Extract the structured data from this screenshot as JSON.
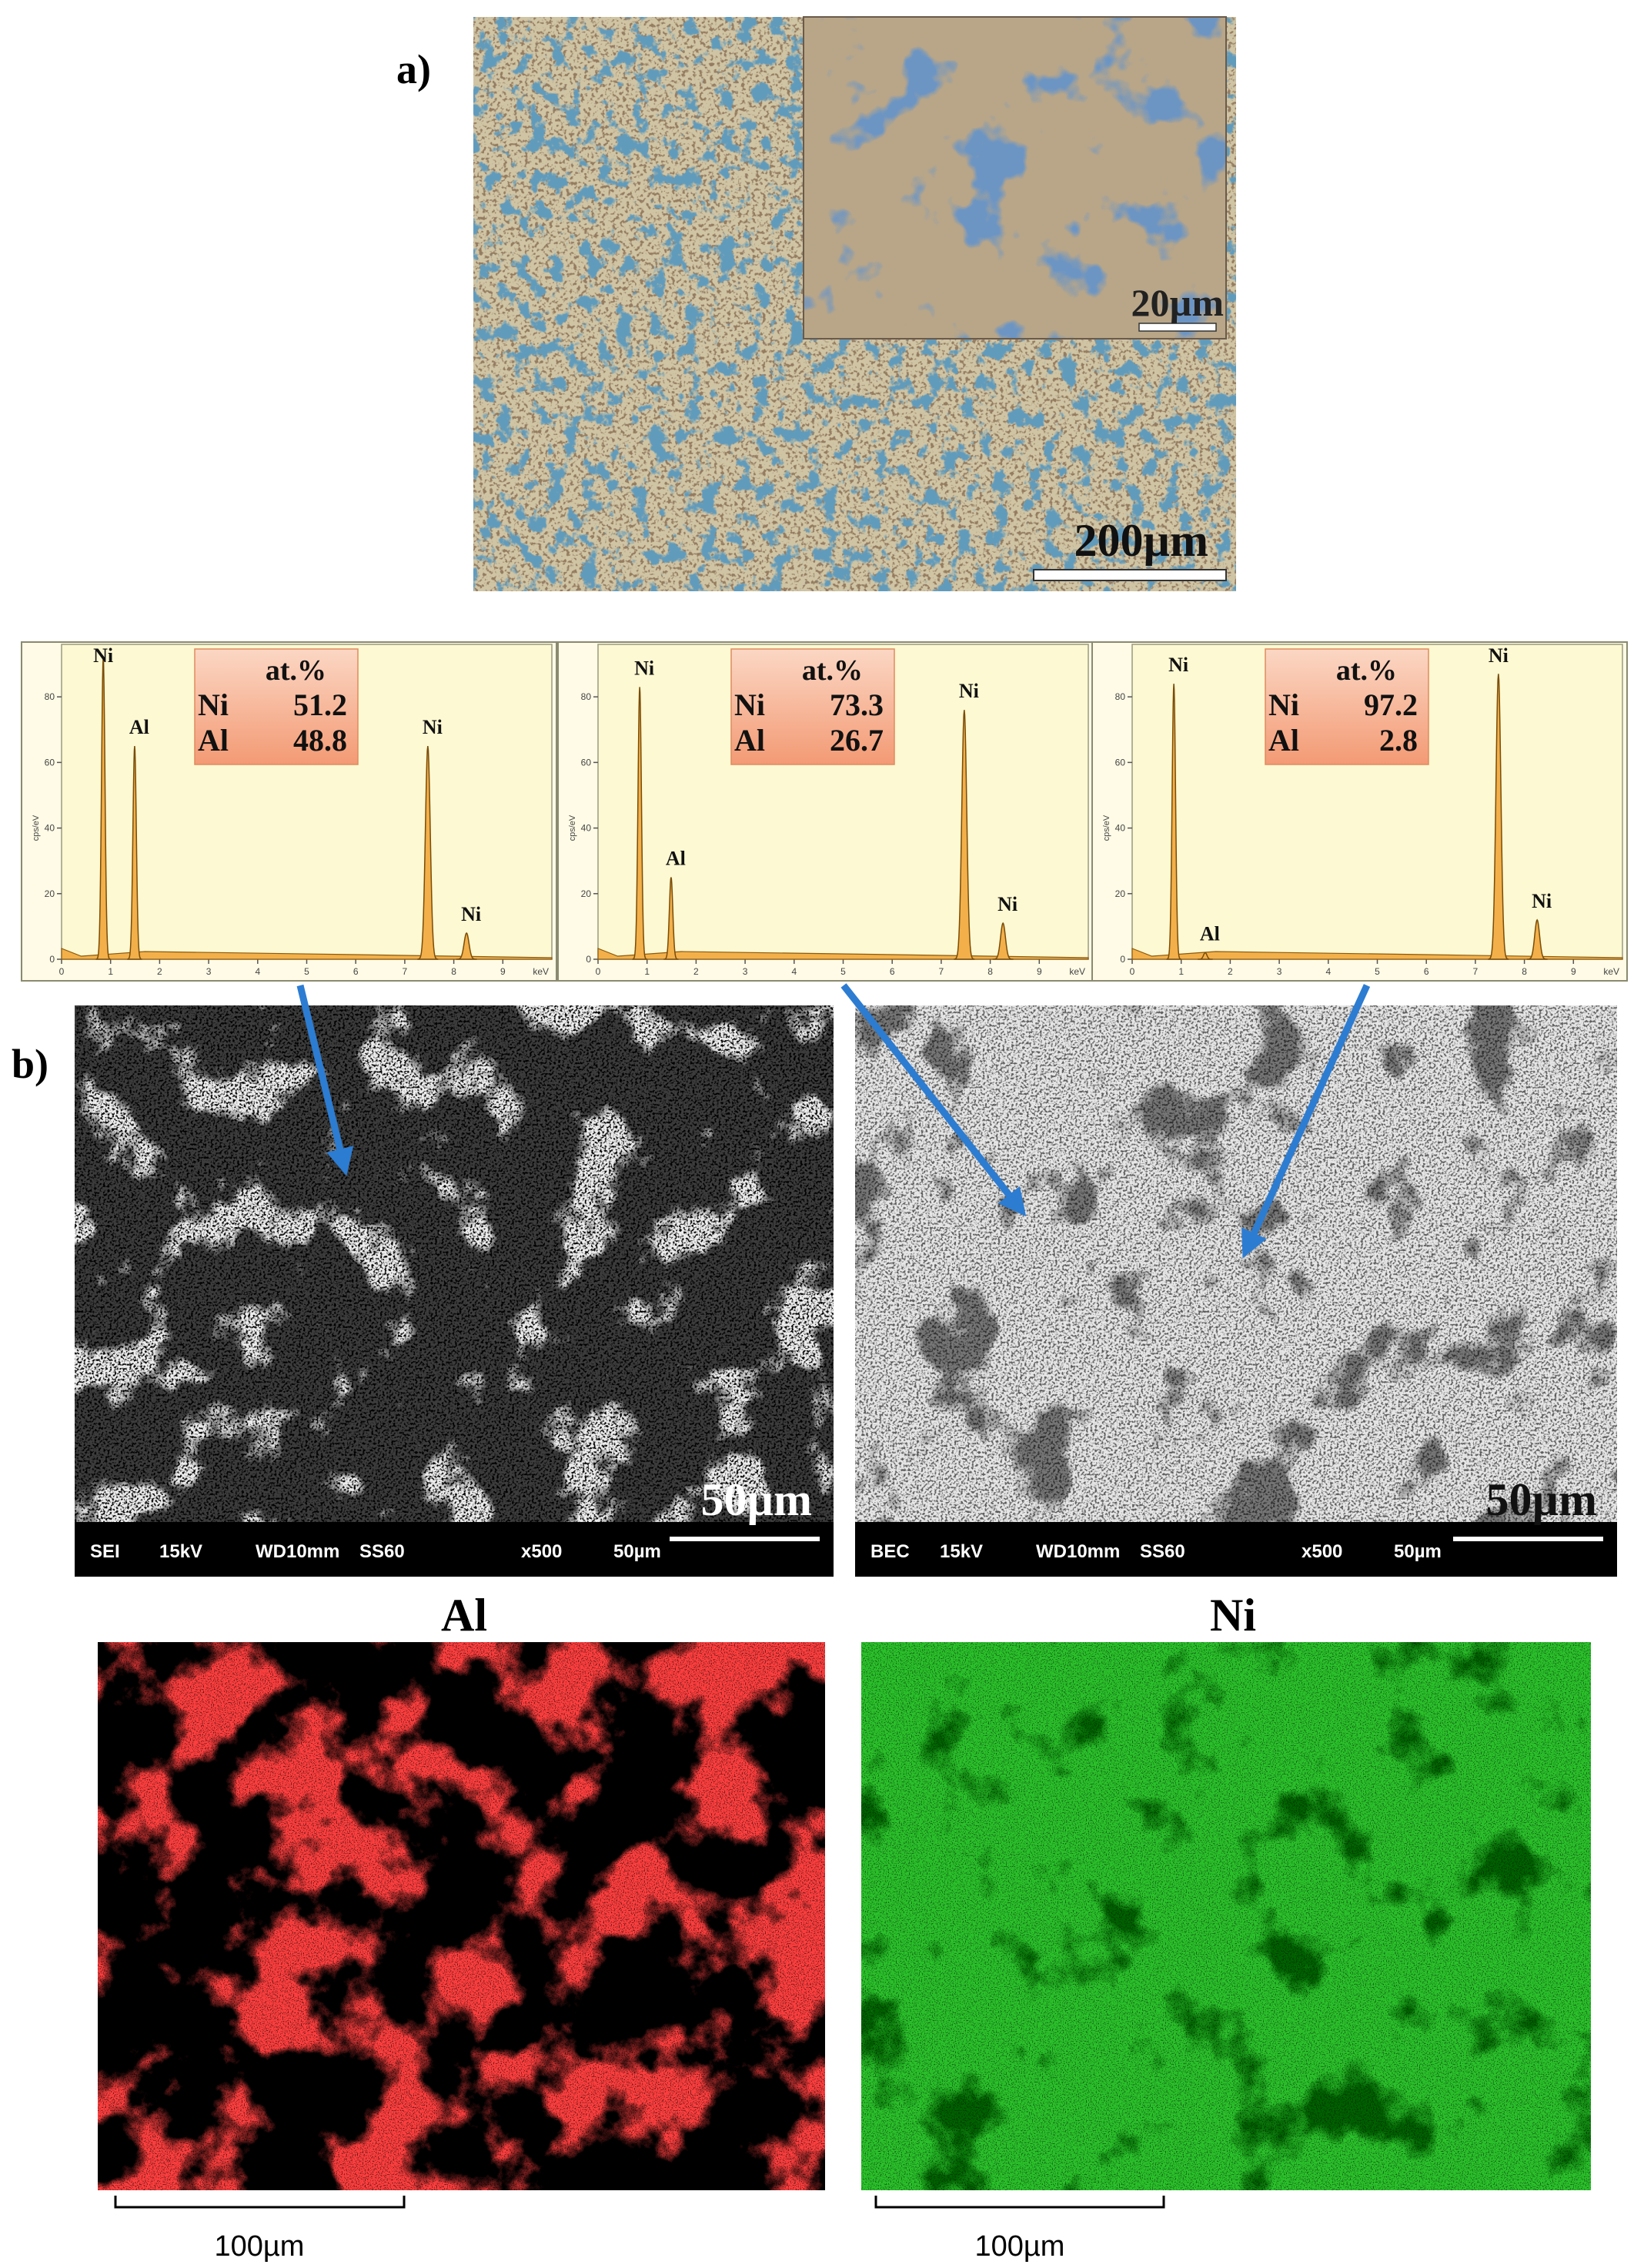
{
  "panel_a": {
    "label": "a)",
    "inset_scale": "20µm",
    "scale": "200µm"
  },
  "spectra": {
    "xlim": [
      0,
      10
    ],
    "ylim": [
      0,
      96
    ],
    "xticks": [
      0,
      1,
      2,
      3,
      4,
      5,
      6,
      7,
      8,
      9
    ],
    "x_unit": "keV",
    "yticks": [
      0,
      20,
      40,
      60,
      80
    ],
    "y_unit": "cps/eV",
    "items": [
      {
        "composition_header": "at.%",
        "composition": [
          {
            "element": "Ni",
            "value": 51.2
          },
          {
            "element": "Al",
            "value": 48.8
          }
        ],
        "peaks": [
          {
            "label": "Ni",
            "kev": 0.85,
            "height": 92
          },
          {
            "label": "Al",
            "kev": 1.49,
            "height": 65
          },
          {
            "label": "Ni",
            "kev": 7.47,
            "height": 65
          },
          {
            "label": "Ni",
            "kev": 8.26,
            "height": 8
          }
        ]
      },
      {
        "composition_header": "at.%",
        "composition": [
          {
            "element": "Ni",
            "value": 73.3
          },
          {
            "element": "Al",
            "value": 26.7
          }
        ],
        "peaks": [
          {
            "label": "Ni",
            "kev": 0.85,
            "height": 83
          },
          {
            "label": "Al",
            "kev": 1.49,
            "height": 25
          },
          {
            "label": "Ni",
            "kev": 7.47,
            "height": 76
          },
          {
            "label": "Ni",
            "kev": 8.26,
            "height": 11
          }
        ]
      },
      {
        "composition_header": "at.%",
        "composition": [
          {
            "element": "Ni",
            "value": 97.2
          },
          {
            "element": "Al",
            "value": 2.8
          }
        ],
        "peaks": [
          {
            "label": "Ni",
            "kev": 0.85,
            "height": 84
          },
          {
            "label": "Al",
            "kev": 1.49,
            "height": 2
          },
          {
            "label": "Ni",
            "kev": 7.47,
            "height": 87
          },
          {
            "label": "Ni",
            "kev": 8.26,
            "height": 12
          }
        ]
      }
    ]
  },
  "panel_b": {
    "label": "b)",
    "images": [
      {
        "scale": "50µm",
        "info": [
          "SEI",
          "15kV",
          "WD10mm",
          "SS60",
          "x500",
          "50µm"
        ]
      },
      {
        "scale": "50µm",
        "info": [
          "BEC",
          "15kV",
          "WD10mm",
          "SS60",
          "x500",
          "50µm"
        ]
      }
    ]
  },
  "maps": [
    {
      "element": "Al",
      "scale": "100µm"
    },
    {
      "element": "Ni",
      "scale": "100µm"
    }
  ]
}
